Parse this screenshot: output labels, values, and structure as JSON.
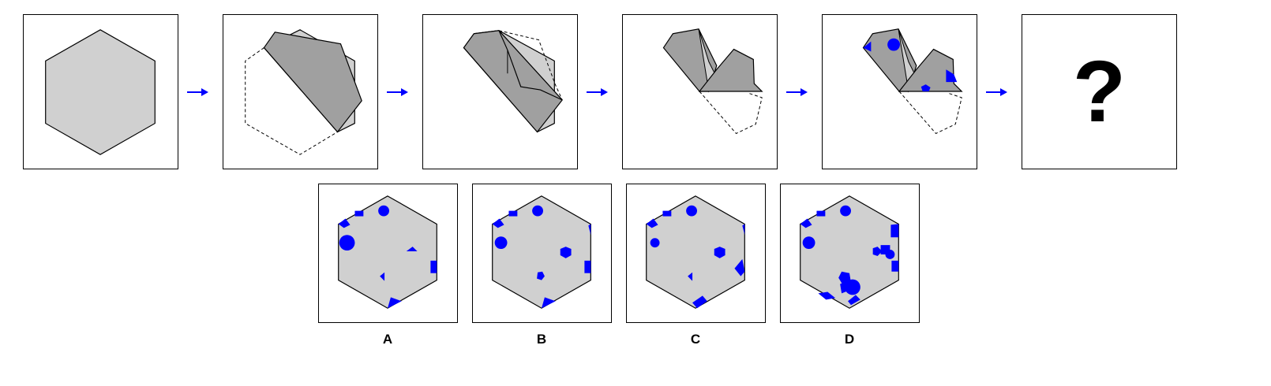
{
  "sequence": {
    "question_mark": "?"
  },
  "options": {
    "labels": [
      "A",
      "B",
      "C",
      "D"
    ]
  },
  "colors": {
    "paper": "#d0d0d0",
    "folded": "#a0a0a0",
    "hole": "#0000ff",
    "outline": "#000000",
    "arrow": "#0000ff"
  }
}
